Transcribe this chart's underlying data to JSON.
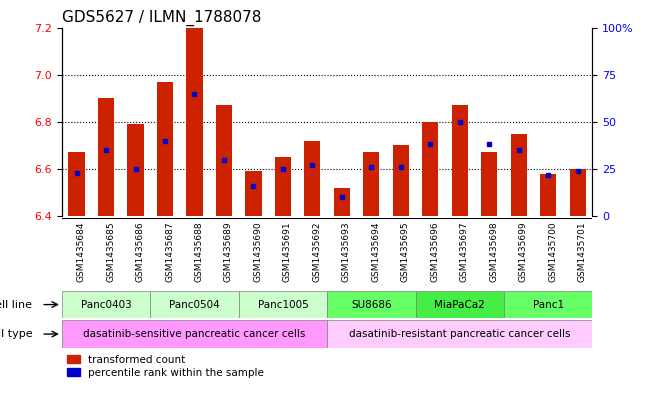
{
  "title": "GDS5627 / ILMN_1788078",
  "samples": [
    "GSM1435684",
    "GSM1435685",
    "GSM1435686",
    "GSM1435687",
    "GSM1435688",
    "GSM1435689",
    "GSM1435690",
    "GSM1435691",
    "GSM1435692",
    "GSM1435693",
    "GSM1435694",
    "GSM1435695",
    "GSM1435696",
    "GSM1435697",
    "GSM1435698",
    "GSM1435699",
    "GSM1435700",
    "GSM1435701"
  ],
  "bar_values": [
    6.67,
    6.9,
    6.79,
    6.97,
    7.2,
    6.87,
    6.59,
    6.65,
    6.72,
    6.52,
    6.67,
    6.7,
    6.8,
    6.87,
    6.67,
    6.75,
    6.58,
    6.6
  ],
  "percentile_values": [
    23,
    35,
    25,
    40,
    65,
    30,
    16,
    25,
    27,
    10,
    26,
    26,
    38,
    50,
    38,
    35,
    22,
    24
  ],
  "ylim_left": [
    6.4,
    7.2
  ],
  "ylim_right": [
    0,
    100
  ],
  "yticks_left": [
    6.4,
    6.6,
    6.8,
    7.0,
    7.2
  ],
  "yticks_right": [
    0,
    25,
    50,
    75,
    100
  ],
  "ytick_labels_right": [
    "0",
    "25",
    "50",
    "75",
    "100%"
  ],
  "grid_lines": [
    6.6,
    6.8,
    7.0
  ],
  "bar_color": "#cc2200",
  "percentile_color": "#0000cc",
  "cell_lines": [
    {
      "name": "Panc0403",
      "start": 0,
      "end": 3,
      "color": "#ccffcc"
    },
    {
      "name": "Panc0504",
      "start": 3,
      "end": 6,
      "color": "#ccffcc"
    },
    {
      "name": "Panc1005",
      "start": 6,
      "end": 9,
      "color": "#ccffcc"
    },
    {
      "name": "SU8686",
      "start": 9,
      "end": 12,
      "color": "#66ff66"
    },
    {
      "name": "MiaPaCa2",
      "start": 12,
      "end": 15,
      "color": "#44ee44"
    },
    {
      "name": "Panc1",
      "start": 15,
      "end": 18,
      "color": "#66ff66"
    }
  ],
  "cell_types": [
    {
      "name": "dasatinib-sensitive pancreatic cancer cells",
      "start": 0,
      "end": 9,
      "color": "#ff99ff"
    },
    {
      "name": "dasatinib-resistant pancreatic cancer cells",
      "start": 9,
      "end": 18,
      "color": "#ffccff"
    }
  ],
  "legend_items": [
    {
      "label": "transformed count",
      "color": "#cc2200"
    },
    {
      "label": "percentile rank within the sample",
      "color": "#0000cc"
    }
  ],
  "cell_line_label": "cell line",
  "cell_type_label": "cell type",
  "title_fontsize": 11,
  "bar_width": 0.55
}
